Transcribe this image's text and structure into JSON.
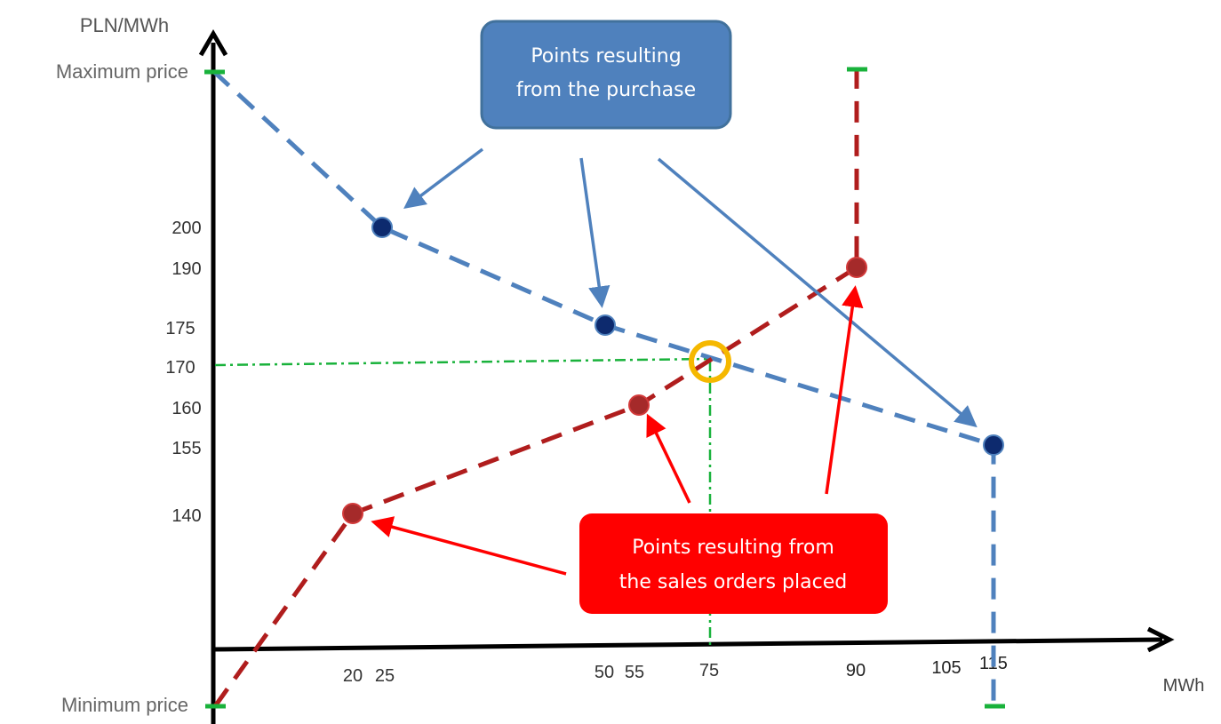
{
  "chart_data": {
    "type": "line",
    "title": "",
    "ylabel": "PLN/MWh",
    "xlabel": "MWh",
    "y_max_label": "Maximum price",
    "y_min_label": "Minimum price",
    "x_ticks": [
      "20",
      "25",
      "50",
      "55",
      "75",
      "90",
      "105",
      "115"
    ],
    "y_ticks": [
      "200",
      "190",
      "175",
      "170",
      "160",
      "155",
      "140"
    ],
    "series": [
      {
        "color": "#4f81bd",
        "marker_color": "#0d2a6e",
        "points": [
          {
            "x": 25,
            "y": 200
          },
          {
            "x": 55,
            "y": 175
          },
          {
            "x": 115,
            "y": 155
          }
        ]
      },
      {
        "color": "#b01d1d",
        "marker_color": "#a52a2a",
        "points": [
          {
            "x": 20,
            "y": 140
          },
          {
            "x": 50,
            "y": 160
          },
          {
            "x": 90,
            "y": 190
          }
        ]
      }
    ],
    "intersection": {
      "x": 75,
      "y": 170,
      "color": "#f5b800"
    },
    "guide_color": "#19b23b",
    "cap_color": "#19b23b",
    "annotations": [
      {
        "text_lines": [
          "Points resulting",
          "from the purchase"
        ],
        "fill": "#4f81bd"
      },
      {
        "text_lines": [
          "Points resulting from",
          "the sales orders placed"
        ],
        "fill": "#ff0000"
      }
    ]
  }
}
